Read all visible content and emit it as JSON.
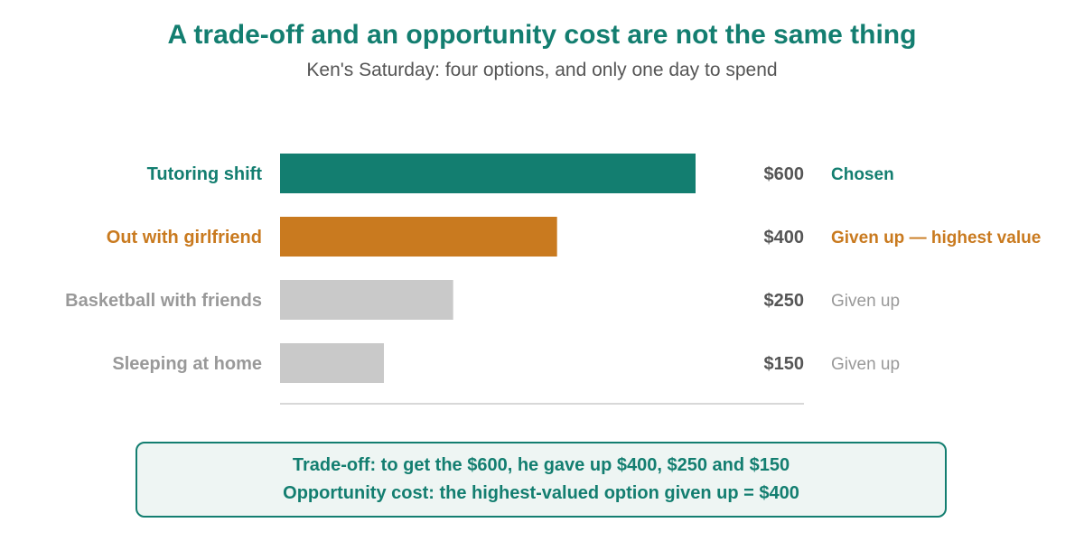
{
  "title": "A trade-off and an opportunity cost are not the same thing",
  "subtitle": "Ken's Saturday: four options, and only one day to spend",
  "chart_data": {
    "type": "bar",
    "orientation": "horizontal",
    "categories": [
      "Tutoring shift",
      "Out with girlfriend",
      "Basketball with friends",
      "Sleeping at home"
    ],
    "values": [
      600,
      400,
      250,
      150
    ],
    "value_labels": [
      "$600",
      "$400",
      "$250",
      "$150"
    ],
    "status_labels": [
      "Chosen",
      "Given up — highest value",
      "Given up",
      "Given up"
    ],
    "colors": [
      "#137e70",
      "#c97a1f",
      "#c9c9c9",
      "#c9c9c9"
    ],
    "label_colors": [
      "#137e70",
      "#c97a1f",
      "#999999",
      "#999999"
    ],
    "status_colors": [
      "#137e70",
      "#c97a1f",
      "#999999",
      "#999999"
    ],
    "xlim": [
      0,
      600
    ],
    "grid": false
  },
  "callout": {
    "line1": "Trade-off: to get the $600, he gave up $400, $250 and $150",
    "line2": "Opportunity cost: the highest-valued option given up = $400"
  }
}
